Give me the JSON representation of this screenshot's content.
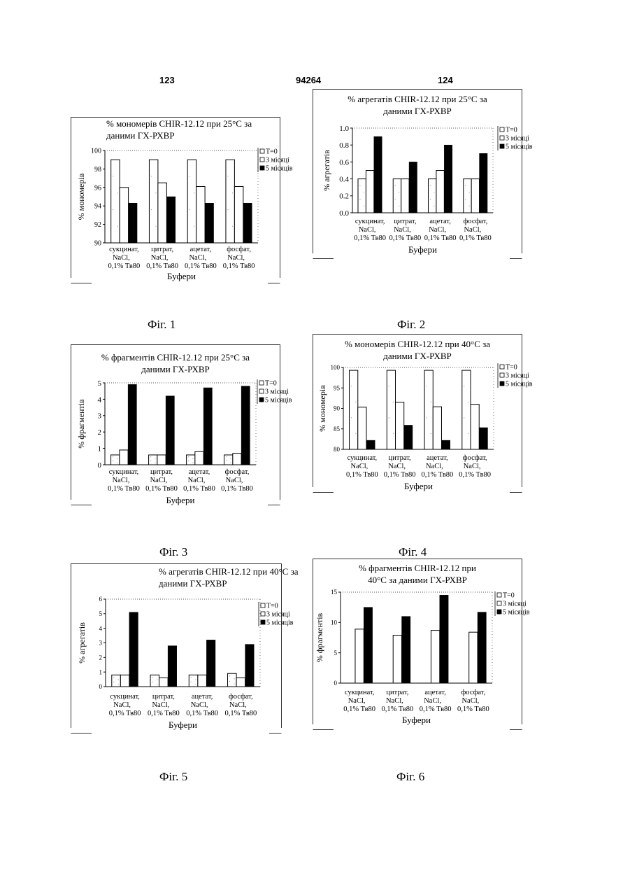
{
  "page": {
    "left_number": "123",
    "center_number": "94264",
    "right_number": "124"
  },
  "figures": [
    {
      "caption": "Фіг. 1"
    },
    {
      "caption": "Фіг. 2"
    },
    {
      "caption": "Фіг. 3"
    },
    {
      "caption": "Фіг. 4"
    },
    {
      "caption": "Фіг. 5"
    },
    {
      "caption": "Фіг. 6"
    }
  ],
  "colors": {
    "T0": "#ffffff",
    "m3": "#ffffff",
    "m5": "#000000"
  },
  "chart_data": [
    {
      "type": "bar",
      "title_lines": [
        "% мономерів CHIR-12.12 при 25°C за",
        "даними ГХ-РХВР"
      ],
      "ylabel": "% мономерів",
      "xlabel": "Буфери",
      "ylim": [
        90,
        100
      ],
      "yticks": [
        "90",
        "92",
        "94",
        "96",
        "98",
        "100"
      ],
      "categories": [
        [
          "сукцинат,",
          "NaCl,",
          "0,1% Тв80"
        ],
        [
          "цитрат,",
          "NaCl,",
          "0,1% Тв80"
        ],
        [
          "ацетат,",
          "NaCl,",
          "0,1% Тв80"
        ],
        [
          "фосфат,",
          "NaCl,",
          "0,1% Тв80"
        ]
      ],
      "series": [
        {
          "name": "T=0",
          "values": [
            99,
            99,
            99,
            99
          ]
        },
        {
          "name": "3 місяці",
          "values": [
            96,
            96.5,
            96.1,
            96.1
          ]
        },
        {
          "name": "5 місяців",
          "values": [
            94.3,
            95,
            94.3,
            94.3
          ]
        }
      ],
      "legend": "top-right",
      "grid": false
    },
    {
      "type": "bar",
      "title_lines": [
        "% агрегатів CHIR-12.12 при 25°C за",
        "даними ГХ-РХВР"
      ],
      "ylabel": "% агрегатів",
      "xlabel": "Буфери",
      "ylim": [
        0,
        1
      ],
      "yticks": [
        "0.0",
        "0.2",
        "0.4",
        "0.6",
        "0.8",
        "1.0"
      ],
      "categories": [
        [
          "сукцинат,",
          "NaCl,",
          "0,1% Тв80"
        ],
        [
          "цитрат,",
          "NaCl,",
          "0,1% Тв80"
        ],
        [
          "ацетат,",
          "NaCl,",
          "0,1% Тв80"
        ],
        [
          "фосфат,",
          "NaCl,",
          "0,1% Тв80"
        ]
      ],
      "series": [
        {
          "name": "T=0",
          "values": [
            0.4,
            0.4,
            0.4,
            0.4
          ]
        },
        {
          "name": "3 місяці",
          "values": [
            0.5,
            0.4,
            0.5,
            0.4
          ]
        },
        {
          "name": "5 місяців",
          "values": [
            0.9,
            0.6,
            0.8,
            0.7
          ]
        }
      ],
      "legend": "top-right",
      "grid": false
    },
    {
      "type": "bar",
      "title_lines": [
        "% фрагментів CHIR-12.12 при 25°C за",
        "даними ГХ-РХВР"
      ],
      "ylabel": "% фрагментів",
      "xlabel": "Буфери",
      "ylim": [
        0,
        5
      ],
      "yticks": [
        "0",
        "1",
        "2",
        "3",
        "4",
        "5"
      ],
      "categories": [
        [
          "сукцинат,",
          "NaCl,",
          "0,1% Тв80"
        ],
        [
          "цитрат,",
          "NaCl,",
          "0,1% Тв80"
        ],
        [
          "ацетат,",
          "NaCl,",
          "0,1% Тв80"
        ],
        [
          "фосфат,",
          "NaCl,",
          "0,1% Тв80"
        ]
      ],
      "series": [
        {
          "name": "T=0",
          "values": [
            0.6,
            0.6,
            0.6,
            0.6
          ]
        },
        {
          "name": "3 місяці",
          "values": [
            0.9,
            0.6,
            0.8,
            0.7
          ]
        },
        {
          "name": "5 місяців",
          "values": [
            4.9,
            4.2,
            4.7,
            4.8
          ]
        }
      ],
      "legend": "top-right",
      "grid": false
    },
    {
      "type": "bar",
      "title_lines": [
        "% мономерів CHIR-12.12 при 40°C за",
        "даними ГХ-РХВР"
      ],
      "ylabel": "% мономерів",
      "xlabel": "Буфери",
      "ylim": [
        80,
        100
      ],
      "yticks": [
        "80",
        "85",
        "90",
        "95",
        "100"
      ],
      "categories": [
        [
          "сукцинат,",
          "NaCl,",
          "0,1% Тв80"
        ],
        [
          "цитрат,",
          "NaCl,",
          "0,1% Тв80"
        ],
        [
          "ацетат,",
          "NaCl,",
          "0,1% Тв80"
        ],
        [
          "фосфат,",
          "NaCl,",
          "0,1% Тв80"
        ]
      ],
      "series": [
        {
          "name": "T=0",
          "values": [
            99.3,
            99.3,
            99.3,
            99.3
          ]
        },
        {
          "name": "3 місяці",
          "values": [
            90.3,
            91.5,
            90.4,
            91
          ]
        },
        {
          "name": "5 місяців",
          "values": [
            82.2,
            85.9,
            82.2,
            85.3
          ]
        }
      ],
      "legend": "top-right",
      "grid": false
    },
    {
      "type": "bar",
      "title_lines": [
        "% агрегатів CHIR-12.12 при 40°C за",
        "даними ГХ-РХВР"
      ],
      "ylabel": "% агрегатів",
      "xlabel": "Буфери",
      "ylim": [
        0,
        6
      ],
      "yticks": [
        "0",
        "1",
        "2",
        "3",
        "4",
        "5",
        "6"
      ],
      "categories": [
        [
          "сукцинат,",
          "NaCl,",
          "0,1% Тв80"
        ],
        [
          "цитрат,",
          "NaCl,",
          "0,1% Тв80"
        ],
        [
          "ацетат,",
          "NaCl,",
          "0,1% Тв80"
        ],
        [
          "фосфат,",
          "NaCl,",
          "0,1% Тв80"
        ]
      ],
      "series": [
        {
          "name": "T=0",
          "values": [
            0.8,
            0.8,
            0.8,
            0.9
          ]
        },
        {
          "name": "3 місяці",
          "values": [
            0.8,
            0.6,
            0.8,
            0.6
          ]
        },
        {
          "name": "5 місяців",
          "values": [
            5.1,
            2.8,
            3.2,
            2.9
          ]
        }
      ],
      "legend": "top-right",
      "grid": false
    },
    {
      "type": "bar",
      "title_lines": [
        "% фрагментів CHIR-12.12 при",
        "40°C за даними ГХ-РХВР"
      ],
      "ylabel": "% фрагментів",
      "xlabel": "Буфери",
      "ylim": [
        0,
        15
      ],
      "yticks": [
        "0",
        "5",
        "10",
        "15"
      ],
      "categories": [
        [
          "сукцинат,",
          "NaCl,",
          "0,1% Тв80"
        ],
        [
          "цитрат,",
          "NaCl,",
          "0,1% Тв80"
        ],
        [
          "ацетат,",
          "NaCl,",
          "0,1% Тв80"
        ],
        [
          "фосфат,",
          "NaCl,",
          "0,1% Тв80"
        ]
      ],
      "series": [
        {
          "name": "T=0",
          "values": [
            0,
            0,
            0,
            0
          ]
        },
        {
          "name": "3 місяці",
          "values": [
            8.9,
            7.9,
            8.7,
            8.4
          ]
        },
        {
          "name": "5 місяців",
          "values": [
            12.5,
            11,
            14.5,
            11.7
          ]
        }
      ],
      "legend": "top-right",
      "grid": false
    }
  ]
}
